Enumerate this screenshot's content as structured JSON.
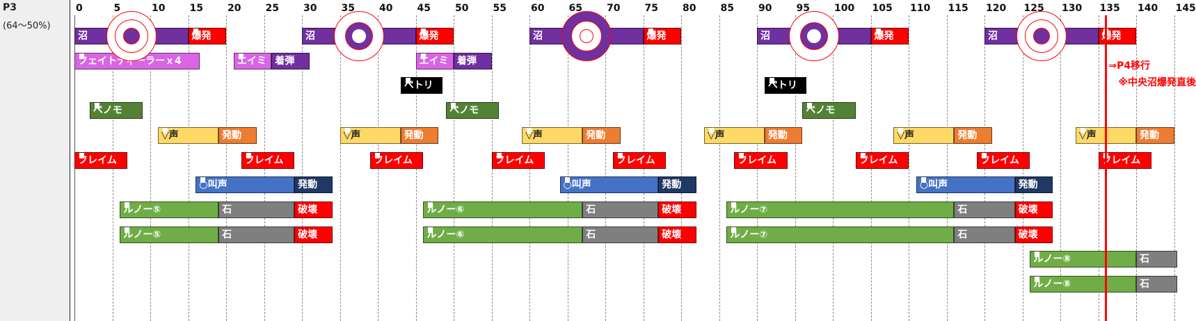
{
  "phase": {
    "title": "P3",
    "hp_range": "(64～50%)"
  },
  "axis": {
    "ticks": [
      "0",
      "5",
      "10",
      "15",
      "20",
      "25",
      "30",
      "35",
      "40",
      "45",
      "50",
      "55",
      "60",
      "65",
      "70",
      "75",
      "80",
      "85",
      "90",
      "95",
      "100",
      "105",
      "110",
      "115",
      "120",
      "125",
      "130",
      "135",
      "140",
      "145"
    ]
  },
  "timeline": {
    "max": 148
  },
  "colors": {
    "swamp": "#7030a0",
    "explosion": "#ff0000",
    "fate": "#d965e6",
    "aimi": "#d965e6",
    "landing": "#7030a0",
    "petri": "#000000",
    "venom": "#548235",
    "voice": "#ffd966",
    "activate_orange": "#ed7d31",
    "flame": "#ff0000",
    "shout": "#4472c4",
    "activate_navy": "#203864",
    "lunor": "#70ad47",
    "stone": "#7f7f7f",
    "destroy": "#ff0000",
    "p4": "#ff0000"
  },
  "rows": [
    {
      "row": 0,
      "bars": [
        {
          "start": 0,
          "end": 15,
          "label": "沼",
          "color": "swamp"
        },
        {
          "start": 15,
          "end": 20,
          "label": "爆発",
          "color": "explosion",
          "notch": true
        },
        {
          "start": 30,
          "end": 45,
          "label": "沼",
          "color": "swamp"
        },
        {
          "start": 45,
          "end": 50,
          "label": "爆発",
          "color": "explosion",
          "notch": true
        },
        {
          "start": 60,
          "end": 75,
          "label": "沼",
          "color": "swamp"
        },
        {
          "start": 75,
          "end": 80,
          "label": "爆発",
          "color": "explosion",
          "notch": true
        },
        {
          "start": 90,
          "end": 105,
          "label": "沼",
          "color": "swamp"
        },
        {
          "start": 105,
          "end": 110,
          "label": "爆発",
          "color": "explosion",
          "notch": true
        },
        {
          "start": 120,
          "end": 135,
          "label": "沼",
          "color": "swamp"
        },
        {
          "start": 135,
          "end": 140,
          "label": "爆発",
          "color": "explosion",
          "notch": true
        }
      ]
    },
    {
      "row": 1,
      "bars": [
        {
          "start": 0,
          "end": 16.5,
          "label": "フェイトディーラーｘ4",
          "color": "fate",
          "notch": true
        },
        {
          "start": 21,
          "end": 26,
          "label": "エイミ",
          "color": "aimi",
          "notch": true
        },
        {
          "start": 26,
          "end": 31,
          "label": "着弾",
          "color": "landing"
        },
        {
          "start": 45,
          "end": 50,
          "label": "エイミ",
          "color": "aimi",
          "notch": true
        },
        {
          "start": 50,
          "end": 55,
          "label": "着弾",
          "color": "landing"
        }
      ]
    },
    {
      "row": 2,
      "bars": [
        {
          "start": 43,
          "end": 48.5,
          "label": "ペトリ",
          "color": "petri",
          "notch": true
        },
        {
          "start": 91,
          "end": 96.5,
          "label": "ペトリ",
          "color": "petri",
          "notch": true
        }
      ]
    },
    {
      "row": 3,
      "bars": [
        {
          "start": 2,
          "end": 9,
          "label": "ベノモ",
          "color": "venom",
          "notch": true
        },
        {
          "start": 49,
          "end": 56,
          "label": "ベノモ",
          "color": "venom",
          "notch": true
        },
        {
          "start": 96,
          "end": 103,
          "label": "ベノモ",
          "color": "venom",
          "notch": true
        }
      ]
    },
    {
      "row": 4,
      "bars": [
        {
          "start": 11,
          "end": 19,
          "label": "▽声",
          "color": "voice",
          "dark": true,
          "notch": true
        },
        {
          "start": 19,
          "end": 24,
          "label": "発動",
          "color": "activate_orange"
        },
        {
          "start": 35,
          "end": 43,
          "label": "▽声",
          "color": "voice",
          "dark": true,
          "notch": true
        },
        {
          "start": 43,
          "end": 48,
          "label": "発動",
          "color": "activate_orange"
        },
        {
          "start": 59,
          "end": 67,
          "label": "▽声",
          "color": "voice",
          "dark": true,
          "notch": true
        },
        {
          "start": 67,
          "end": 72,
          "label": "発動",
          "color": "activate_orange"
        },
        {
          "start": 83,
          "end": 91,
          "label": "▽声",
          "color": "voice",
          "dark": true,
          "notch": true
        },
        {
          "start": 91,
          "end": 96,
          "label": "発動",
          "color": "activate_orange"
        },
        {
          "start": 108,
          "end": 116,
          "label": "▽声",
          "color": "voice",
          "dark": true,
          "notch": true
        },
        {
          "start": 116,
          "end": 121,
          "label": "発動",
          "color": "activate_orange"
        },
        {
          "start": 132,
          "end": 140,
          "label": "▽声",
          "color": "voice",
          "dark": true,
          "notch": true
        },
        {
          "start": 140,
          "end": 145,
          "label": "発動",
          "color": "activate_orange"
        }
      ]
    },
    {
      "row": 5,
      "bars": [
        {
          "start": 0,
          "end": 7,
          "label": "フレイム",
          "color": "flame",
          "notch": true
        },
        {
          "start": 22,
          "end": 29,
          "label": "フレイム",
          "color": "flame",
          "notch": true
        },
        {
          "start": 39,
          "end": 46,
          "label": "フレイム",
          "color": "flame",
          "notch": true
        },
        {
          "start": 55,
          "end": 62,
          "label": "フレイム",
          "color": "flame",
          "notch": true
        },
        {
          "start": 71,
          "end": 78,
          "label": "フレイム",
          "color": "flame",
          "notch": true
        },
        {
          "start": 87,
          "end": 94,
          "label": "フレイム",
          "color": "flame",
          "notch": true
        },
        {
          "start": 103,
          "end": 110,
          "label": "フレイム",
          "color": "flame",
          "notch": true
        },
        {
          "start": 119,
          "end": 126,
          "label": "フレイム",
          "color": "flame",
          "notch": true
        },
        {
          "start": 135,
          "end": 142,
          "label": "フレイム",
          "color": "flame",
          "notch": true
        }
      ]
    },
    {
      "row": 6,
      "bars": [
        {
          "start": 16,
          "end": 29,
          "label": "○叫声",
          "color": "shout",
          "notch": true
        },
        {
          "start": 29,
          "end": 34,
          "label": "発動",
          "color": "activate_navy"
        },
        {
          "start": 64,
          "end": 77,
          "label": "○叫声",
          "color": "shout",
          "notch": true
        },
        {
          "start": 77,
          "end": 82,
          "label": "発動",
          "color": "activate_navy"
        },
        {
          "start": 111,
          "end": 124,
          "label": "○叫声",
          "color": "shout",
          "notch": true
        },
        {
          "start": 124,
          "end": 129,
          "label": "発動",
          "color": "activate_navy"
        }
      ]
    },
    {
      "row": 7,
      "bars": [
        {
          "start": 6,
          "end": 19,
          "label": "ルノー⑤",
          "color": "lunor",
          "notch": true
        },
        {
          "start": 19,
          "end": 29,
          "label": "石",
          "color": "stone"
        },
        {
          "start": 29,
          "end": 34,
          "label": "破壊",
          "color": "destroy"
        },
        {
          "start": 46,
          "end": 67,
          "label": "ルノー⑥",
          "color": "lunor",
          "notch": true
        },
        {
          "start": 67,
          "end": 77,
          "label": "石",
          "color": "stone"
        },
        {
          "start": 77,
          "end": 82,
          "label": "破壊",
          "color": "destroy"
        },
        {
          "start": 86,
          "end": 116,
          "label": "ルノー⑦",
          "color": "lunor",
          "notch": true
        },
        {
          "start": 116,
          "end": 124,
          "label": "石",
          "color": "stone"
        },
        {
          "start": 124,
          "end": 129,
          "label": "破壊",
          "color": "destroy"
        }
      ]
    },
    {
      "row": 8,
      "bars": [
        {
          "start": 6,
          "end": 19,
          "label": "ルノー⑤",
          "color": "lunor",
          "notch": true
        },
        {
          "start": 19,
          "end": 29,
          "label": "石",
          "color": "stone"
        },
        {
          "start": 29,
          "end": 34,
          "label": "破壊",
          "color": "destroy"
        },
        {
          "start": 46,
          "end": 67,
          "label": "ルノー⑥",
          "color": "lunor",
          "notch": true
        },
        {
          "start": 67,
          "end": 77,
          "label": "石",
          "color": "stone"
        },
        {
          "start": 77,
          "end": 82,
          "label": "破壊",
          "color": "destroy"
        },
        {
          "start": 86,
          "end": 116,
          "label": "ルノー⑦",
          "color": "lunor",
          "notch": true
        },
        {
          "start": 116,
          "end": 124,
          "label": "石",
          "color": "stone"
        },
        {
          "start": 124,
          "end": 129,
          "label": "破壊",
          "color": "destroy"
        }
      ]
    },
    {
      "row": 9,
      "bars": [
        {
          "start": 126,
          "end": 140,
          "label": "ルノー⑧",
          "color": "lunor",
          "notch": true
        },
        {
          "start": 140,
          "end": 148,
          "label": "石",
          "color": "stone"
        }
      ]
    },
    {
      "row": 10,
      "bars": [
        {
          "start": 126,
          "end": 140,
          "label": "ルノー⑧",
          "color": "lunor",
          "notch": true
        },
        {
          "start": 140,
          "end": 148,
          "label": "石",
          "color": "stone"
        }
      ]
    }
  ],
  "markers": [
    {
      "time": 7.5,
      "style": "dot"
    },
    {
      "time": 37.5,
      "style": "ring"
    },
    {
      "time": 67.5,
      "style": "big"
    },
    {
      "time": 97.5,
      "style": "ring"
    },
    {
      "time": 127.5,
      "style": "dot"
    }
  ],
  "p4_transition": {
    "time": 136,
    "note1": "⇒P4移行",
    "note2": "※中央沼爆発直後"
  }
}
